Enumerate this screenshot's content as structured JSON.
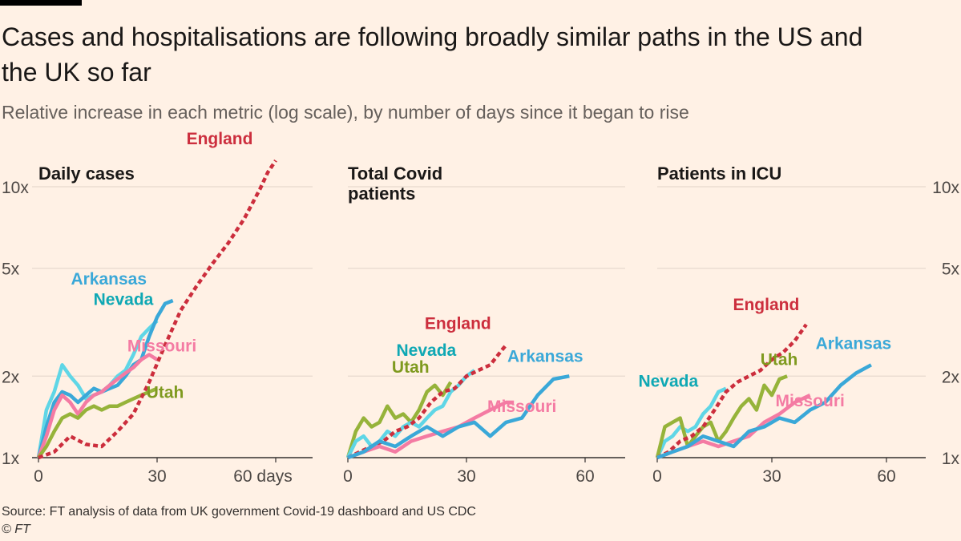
{
  "header": {
    "title": "Cases and hospitalisations are following broadly similar paths in the US and the UK so far",
    "subtitle": "Relative increase in each metric (log scale), by number of days since it began to rise"
  },
  "footer": {
    "source": "Source: FT analysis of data from UK government Covid-19 dashboard and US CDC",
    "copyright": "© FT"
  },
  "colors": {
    "background": "#fff1e5",
    "grid": "#e6d9ce",
    "axis": "#33302e",
    "England": "#cc2e3d",
    "Arkansas": "#3aa8d8",
    "Nevada": "#5fd6e6",
    "Missouri": "#f47ba3",
    "Utah": "#96b33a",
    "Nevada_label": "#0fa8b4",
    "Utah_label": "#7f9a1f"
  },
  "chart_data": [
    {
      "type": "line",
      "title": "Daily cases",
      "x_ticks": [
        "0",
        "30",
        "60 days"
      ],
      "y_ticks_left": [
        "10x",
        "5x",
        "2x",
        "1x"
      ],
      "y_ticks_right": [],
      "xlim": [
        0,
        70
      ],
      "ylim": [
        1,
        10
      ],
      "y_scale": "log",
      "series": [
        {
          "name": "Nevada",
          "x": [
            0,
            2,
            4,
            6,
            8,
            10,
            12,
            14,
            16,
            18,
            20,
            22,
            24,
            26,
            28,
            30
          ],
          "y": [
            1.0,
            1.5,
            1.75,
            2.2,
            2.0,
            1.85,
            1.65,
            1.7,
            1.75,
            1.85,
            2.0,
            2.1,
            2.4,
            2.8,
            3.0,
            3.2
          ]
        },
        {
          "name": "Arkansas",
          "x": [
            0,
            2,
            4,
            6,
            8,
            10,
            12,
            14,
            16,
            18,
            20,
            22,
            24,
            26,
            28,
            30,
            32,
            34
          ],
          "y": [
            1.0,
            1.3,
            1.6,
            1.75,
            1.7,
            1.6,
            1.7,
            1.8,
            1.75,
            1.8,
            1.85,
            2.0,
            2.2,
            2.3,
            2.8,
            3.3,
            3.7,
            3.8
          ]
        },
        {
          "name": "Missouri",
          "x": [
            0,
            2,
            4,
            6,
            8,
            10,
            12,
            14,
            16,
            18,
            20,
            22,
            24,
            26,
            28,
            30
          ],
          "y": [
            1.0,
            1.2,
            1.5,
            1.7,
            1.6,
            1.45,
            1.6,
            1.7,
            1.75,
            1.85,
            1.95,
            2.05,
            2.15,
            2.3,
            2.4,
            2.3
          ]
        },
        {
          "name": "Utah",
          "x": [
            0,
            2,
            4,
            6,
            8,
            10,
            12,
            14,
            16,
            18,
            20,
            22,
            24,
            26,
            28,
            30
          ],
          "y": [
            1.0,
            1.1,
            1.25,
            1.4,
            1.45,
            1.4,
            1.5,
            1.55,
            1.5,
            1.55,
            1.55,
            1.6,
            1.65,
            1.7,
            1.75,
            1.8
          ]
        },
        {
          "name": "England",
          "x": [
            0,
            4,
            8,
            12,
            16,
            20,
            24,
            28,
            32,
            36,
            40,
            44,
            48,
            52,
            56,
            58,
            60
          ],
          "y": [
            1.0,
            1.05,
            1.2,
            1.12,
            1.1,
            1.25,
            1.45,
            1.9,
            2.6,
            3.5,
            4.3,
            5.2,
            6.2,
            7.6,
            9.8,
            11.3,
            12.5
          ]
        }
      ],
      "labels": [
        {
          "text": "England",
          "series": "England"
        },
        {
          "text": "Arkansas",
          "series": "Arkansas"
        },
        {
          "text": "Nevada",
          "series": "Nevada"
        },
        {
          "text": "Missouri",
          "series": "Missouri"
        },
        {
          "text": "Utah",
          "series": "Utah"
        }
      ]
    },
    {
      "type": "line",
      "title": "Total Covid patients",
      "x_ticks": [
        "0",
        "30",
        "60"
      ],
      "y_ticks_left": [],
      "y_ticks_right": [],
      "xlim": [
        0,
        70
      ],
      "ylim": [
        1,
        10
      ],
      "y_scale": "log",
      "series": [
        {
          "name": "Utah",
          "x": [
            0,
            2,
            4,
            6,
            8,
            10,
            12,
            14,
            16,
            18,
            20,
            22,
            24,
            26
          ],
          "y": [
            1.0,
            1.25,
            1.4,
            1.3,
            1.35,
            1.55,
            1.4,
            1.45,
            1.35,
            1.5,
            1.75,
            1.85,
            1.7,
            1.9
          ]
        },
        {
          "name": "Nevada",
          "x": [
            0,
            2,
            4,
            6,
            8,
            10,
            12,
            14,
            16,
            18,
            20,
            22,
            24,
            26,
            28,
            30,
            32
          ],
          "y": [
            1.0,
            1.15,
            1.2,
            1.1,
            1.15,
            1.25,
            1.2,
            1.3,
            1.35,
            1.3,
            1.4,
            1.5,
            1.55,
            1.75,
            1.85,
            2.0,
            2.1
          ]
        },
        {
          "name": "England",
          "x": [
            0,
            3,
            6,
            9,
            12,
            15,
            18,
            21,
            24,
            27,
            30,
            33,
            36,
            39,
            40
          ],
          "y": [
            1.0,
            1.05,
            1.1,
            1.15,
            1.25,
            1.3,
            1.4,
            1.6,
            1.75,
            1.8,
            2.0,
            2.1,
            2.2,
            2.5,
            2.6
          ]
        },
        {
          "name": "Missouri",
          "x": [
            0,
            4,
            8,
            12,
            16,
            20,
            24,
            28,
            32,
            36,
            40,
            42
          ],
          "y": [
            1.0,
            1.05,
            1.1,
            1.05,
            1.15,
            1.2,
            1.25,
            1.3,
            1.4,
            1.5,
            1.6,
            1.6
          ]
        },
        {
          "name": "Arkansas",
          "x": [
            0,
            4,
            8,
            12,
            16,
            20,
            24,
            28,
            32,
            36,
            40,
            44,
            48,
            52,
            56
          ],
          "y": [
            1.0,
            1.05,
            1.15,
            1.1,
            1.2,
            1.3,
            1.2,
            1.3,
            1.35,
            1.2,
            1.35,
            1.4,
            1.7,
            1.95,
            2.0
          ]
        }
      ],
      "labels": [
        {
          "text": "England",
          "series": "England"
        },
        {
          "text": "Arkansas",
          "series": "Arkansas"
        },
        {
          "text": "Nevada",
          "series": "Nevada"
        },
        {
          "text": "Utah",
          "series": "Utah"
        },
        {
          "text": "Missouri",
          "series": "Missouri"
        }
      ]
    },
    {
      "type": "line",
      "title": "Patients in ICU",
      "x_ticks": [
        "0",
        "30",
        "60"
      ],
      "y_ticks_left": [],
      "y_ticks_right": [
        "10x",
        "5x",
        "2x",
        "1x"
      ],
      "xlim": [
        0,
        70
      ],
      "ylim": [
        1,
        10
      ],
      "y_scale": "log",
      "series": [
        {
          "name": "Nevada",
          "x": [
            0,
            2,
            4,
            6,
            8,
            10,
            12,
            14,
            16,
            18
          ],
          "y": [
            1.0,
            1.15,
            1.2,
            1.3,
            1.25,
            1.3,
            1.45,
            1.55,
            1.75,
            1.8
          ]
        },
        {
          "name": "Utah",
          "x": [
            0,
            2,
            4,
            6,
            8,
            10,
            12,
            14,
            16,
            18,
            20,
            22,
            24,
            26,
            28,
            30,
            32,
            34
          ],
          "y": [
            1.0,
            1.3,
            1.35,
            1.4,
            1.1,
            1.2,
            1.3,
            1.35,
            1.15,
            1.25,
            1.4,
            1.55,
            1.65,
            1.5,
            1.85,
            1.7,
            1.95,
            2.0
          ]
        },
        {
          "name": "England",
          "x": [
            0,
            3,
            6,
            9,
            12,
            15,
            18,
            21,
            24,
            27,
            30,
            33,
            36,
            39
          ],
          "y": [
            1.0,
            1.05,
            1.15,
            1.2,
            1.3,
            1.5,
            1.75,
            1.9,
            2.0,
            2.1,
            2.3,
            2.45,
            2.7,
            3.1
          ]
        },
        {
          "name": "Missouri",
          "x": [
            0,
            4,
            8,
            12,
            16,
            20,
            24,
            28,
            32,
            36,
            40
          ],
          "y": [
            1.0,
            1.05,
            1.1,
            1.15,
            1.1,
            1.15,
            1.2,
            1.35,
            1.45,
            1.6,
            1.7
          ]
        },
        {
          "name": "Arkansas",
          "x": [
            0,
            4,
            8,
            12,
            16,
            20,
            24,
            28,
            32,
            36,
            40,
            44,
            48,
            52,
            56
          ],
          "y": [
            1.0,
            1.05,
            1.1,
            1.2,
            1.15,
            1.1,
            1.25,
            1.3,
            1.4,
            1.35,
            1.5,
            1.6,
            1.85,
            2.05,
            2.2
          ]
        }
      ],
      "labels": [
        {
          "text": "England",
          "series": "England"
        },
        {
          "text": "Arkansas",
          "series": "Arkansas"
        },
        {
          "text": "Nevada",
          "series": "Nevada"
        },
        {
          "text": "Utah",
          "series": "Utah"
        },
        {
          "text": "Missouri",
          "series": "Missouri"
        }
      ]
    }
  ]
}
